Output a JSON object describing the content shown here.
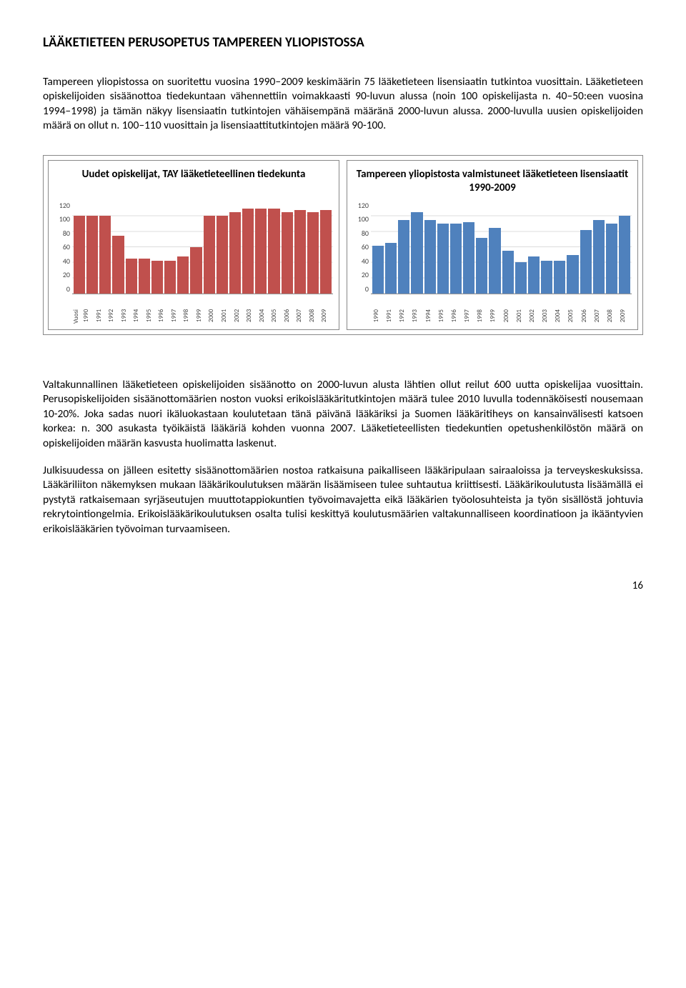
{
  "title": "LÄÄKETIETEEN PERUSOPETUS TAMPEREEN YLIOPISTOSSA",
  "para1": "Tampereen yliopistossa on suoritettu vuosina 1990–2009 keskimäärin 75 lääketieteen lisensiaatin tutkintoa vuosittain. Lääketieteen opiskelijoiden sisäänottoa tiedekuntaan vähennettiin voimakkaasti 90-luvun alussa (noin 100 opiskelijasta n. 40–50:een vuosina 1994–1998) ja tämän näkyy lisensiaatin tutkintojen vähäisempänä määränä 2000-luvun alussa. 2000-luvulla uusien opiskelijoiden määrä on ollut n. 100–110 vuosittain ja lisensiaattitutkintojen määrä 90-100.",
  "para2": "Valtakunnallinen lääketieteen opiskelijoiden sisäänotto on 2000-luvun alusta lähtien ollut reilut 600 uutta opiskelijaa vuosittain. Perusopiskelijoiden sisäänottomäärien noston vuoksi erikoislääkäritutkintojen määrä tulee 2010 luvulla todennäköisesti nousemaan 10-20%.  Joka sadas nuori ikäluokastaan koulutetaan tänä päivänä lääkäriksi ja Suomen lääkäritiheys on kansainvälisesti katsoen korkea: n. 300 asukasta työikäistä lääkäriä kohden vuonna 2007. Lääketieteellisten tiedekuntien opetushenkilöstön määrä on opiskelijoiden määrän kasvusta huolimatta laskenut.",
  "para3": "Julkisuudessa on jälleen esitetty sisäänottomäärien nostoa ratkaisuna paikalliseen lääkäripulaan sairaaloissa ja terveyskeskuksissa. Lääkäriliiton näkemyksen mukaan lääkärikoulutuksen määrän lisäämiseen tulee suhtautua kriittisesti. Lääkärikoulutusta lisäämällä ei pystytä ratkaisemaan syrjäseutujen muuttotappiokuntien työvoimavajetta eikä lääkärien työolosuhteista ja työn sisällöstä johtuvia rekrytointiongelmia. Erikoislääkärikoulutuksen osalta tulisi keskittyä koulutusmäärien valtakunnalliseen koordinatioon ja ikääntyvien erikoislääkärien työvoiman turvaamiseen.",
  "chart1": {
    "title": "Uudet opiskelijat, TAY lääketieteellinen tiedekunta",
    "color": "#c0504d",
    "ylim": 120,
    "yticks": [
      "120",
      "100",
      "80",
      "60",
      "40",
      "20",
      "0"
    ],
    "xaxis_label": "Vuosi",
    "years": [
      "1990",
      "1991",
      "1992",
      "1993",
      "1994",
      "1995",
      "1996",
      "1997",
      "1998",
      "1999",
      "2000",
      "2001",
      "2002",
      "2003",
      "2004",
      "2005",
      "2006",
      "2007",
      "2008",
      "2009"
    ],
    "values": [
      100,
      100,
      100,
      75,
      45,
      45,
      42,
      42,
      48,
      60,
      100,
      100,
      105,
      110,
      110,
      110,
      105,
      108,
      105,
      108
    ]
  },
  "chart2": {
    "title": "Tampereen yliopistosta valmistuneet lääketieteen lisensiaatit 1990-2009",
    "color": "#4f81bd",
    "ylim": 120,
    "yticks": [
      "120",
      "100",
      "80",
      "60",
      "40",
      "20",
      "0"
    ],
    "years": [
      "1990",
      "1991",
      "1992",
      "1993",
      "1994",
      "1995",
      "1996",
      "1997",
      "1998",
      "1999",
      "2000",
      "2001",
      "2002",
      "2003",
      "2004",
      "2005",
      "2006",
      "2007",
      "2008",
      "2009"
    ],
    "values": [
      62,
      65,
      95,
      105,
      95,
      90,
      90,
      92,
      72,
      85,
      55,
      40,
      48,
      42,
      42,
      50,
      82,
      95,
      90,
      100
    ]
  },
  "page_number": "16"
}
